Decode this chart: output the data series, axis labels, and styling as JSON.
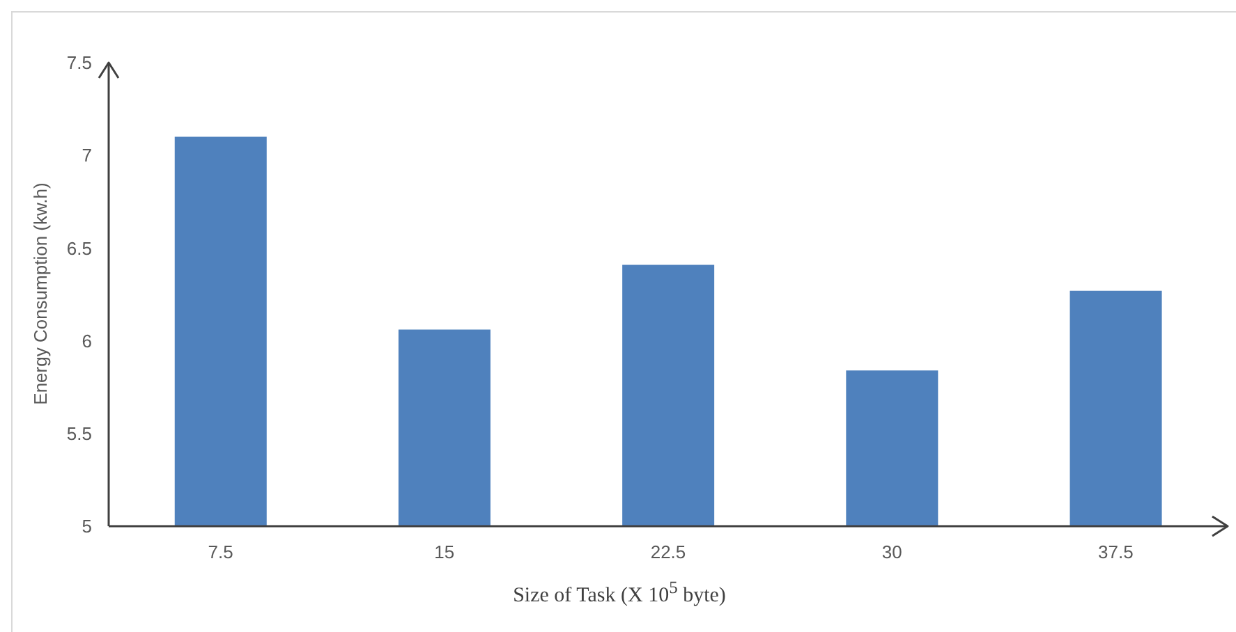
{
  "chart_data": {
    "type": "bar",
    "xlabel": "Size of Task (X 10$^{5}$ byte)",
    "ylabel": "Energy Consumption (kw.h)",
    "categories": [
      "7.5",
      "15",
      "22.5",
      "30",
      "37.5"
    ],
    "values": [
      7.1,
      6.06,
      6.41,
      5.84,
      6.27
    ],
    "color": "#4f81bd",
    "ylim": [
      5,
      7.5
    ],
    "yticks": [
      5,
      5.5,
      6,
      6.5,
      7,
      7.5
    ]
  }
}
